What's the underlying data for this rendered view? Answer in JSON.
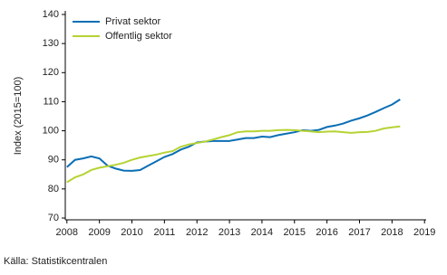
{
  "chart_data": {
    "type": "line",
    "y_label": "Index (2015=100)",
    "source": "Källa: Statistikcentralen",
    "x": [
      2008,
      2008.25,
      2008.5,
      2008.75,
      2009,
      2009.25,
      2009.5,
      2009.75,
      2010,
      2010.25,
      2010.5,
      2010.75,
      2011,
      2011.25,
      2011.5,
      2011.75,
      2012,
      2012.25,
      2012.5,
      2012.75,
      2013,
      2013.25,
      2013.5,
      2013.75,
      2014,
      2014.25,
      2014.5,
      2014.75,
      2015,
      2015.25,
      2015.5,
      2015.75,
      2016,
      2016.25,
      2016.5,
      2016.75,
      2017,
      2017.25,
      2017.5,
      2017.75,
      2018,
      2018.25
    ],
    "series": [
      {
        "name": "Privat sektor",
        "color": "#0a6eb4",
        "values": [
          87.5,
          90,
          90.5,
          91.2,
          90.5,
          88,
          87,
          86.3,
          86.2,
          86.5,
          88,
          89.5,
          91,
          92,
          93.5,
          94.5,
          96,
          96.3,
          96.5,
          96.5,
          96.5,
          97,
          97.5,
          97.5,
          98,
          97.8,
          98.5,
          99,
          99.5,
          100.2,
          100,
          100.3,
          101.3,
          101.8,
          102.5,
          103.5,
          104.3,
          105.3,
          106.5,
          107.8,
          109,
          110.8
        ]
      },
      {
        "name": "Offentlig sektor",
        "color": "#b5d334",
        "values": [
          82.3,
          84,
          85,
          86.5,
          87.3,
          87.8,
          88.3,
          89,
          90,
          90.8,
          91.3,
          91.8,
          92.5,
          93,
          94.5,
          95.3,
          95.8,
          96.3,
          97,
          97.8,
          98.5,
          99.5,
          99.8,
          99.8,
          100,
          100,
          100.2,
          100.3,
          100.2,
          100,
          99.8,
          99.5,
          99.7,
          99.8,
          99.5,
          99.3,
          99.5,
          99.6,
          100,
          100.8,
          101.2,
          101.5
        ]
      }
    ],
    "xlim": [
      2007.95,
      2019.05
    ],
    "xticks": [
      2008,
      2009,
      2010,
      2011,
      2012,
      2013,
      2014,
      2015,
      2016,
      2017,
      2018,
      2019
    ],
    "ylim": [
      70,
      140
    ],
    "yticks": [
      70,
      80,
      90,
      100,
      110,
      120,
      130,
      140
    ],
    "legend": "upper-left"
  }
}
